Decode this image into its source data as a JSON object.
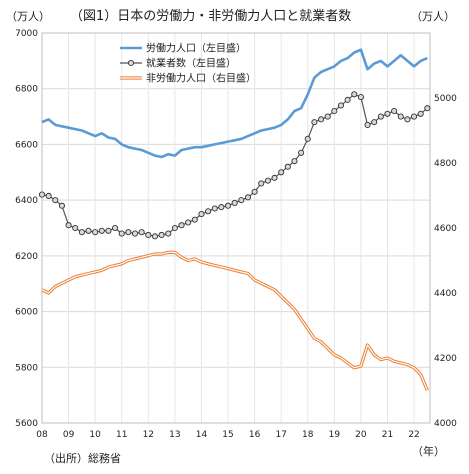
{
  "chart_data": {
    "type": "line",
    "title": "（図1）日本の労働力・非労働力人口と就業者数",
    "unit_left": "（万人）",
    "unit_right": "（万人）",
    "x_unit": "（年）",
    "source": "（出所）総務省",
    "x_ticks": [
      "08",
      "09",
      "10",
      "11",
      "12",
      "13",
      "14",
      "15",
      "16",
      "17",
      "18",
      "19",
      "20",
      "21",
      "22"
    ],
    "x_range": [
      2008.0,
      2022.6
    ],
    "y_left": {
      "min": 5600,
      "max": 7000,
      "ticks": [
        5600,
        5800,
        6000,
        6200,
        6400,
        6600,
        6800,
        7000
      ]
    },
    "y_right": {
      "min": 4000,
      "max": 5200,
      "ticks": [
        4000,
        4200,
        4400,
        4600,
        4800,
        5000
      ]
    },
    "grid": true,
    "legend_position": "top-center",
    "series": [
      {
        "name": "労働力人口（左目盛）",
        "axis": "left",
        "color": "#5b9bd5",
        "style": "line",
        "points": [
          [
            2008.0,
            6680
          ],
          [
            2008.25,
            6690
          ],
          [
            2008.5,
            6670
          ],
          [
            2008.75,
            6665
          ],
          [
            2009.0,
            6660
          ],
          [
            2009.25,
            6655
          ],
          [
            2009.5,
            6650
          ],
          [
            2009.75,
            6640
          ],
          [
            2010.0,
            6630
          ],
          [
            2010.25,
            6640
          ],
          [
            2010.5,
            6625
          ],
          [
            2010.75,
            6620
          ],
          [
            2011.0,
            6600
          ],
          [
            2011.25,
            6590
          ],
          [
            2011.5,
            6585
          ],
          [
            2011.75,
            6580
          ],
          [
            2012.0,
            6570
          ],
          [
            2012.25,
            6560
          ],
          [
            2012.5,
            6555
          ],
          [
            2012.75,
            6565
          ],
          [
            2013.0,
            6560
          ],
          [
            2013.25,
            6580
          ],
          [
            2013.5,
            6585
          ],
          [
            2013.75,
            6590
          ],
          [
            2014.0,
            6590
          ],
          [
            2014.25,
            6595
          ],
          [
            2014.5,
            6600
          ],
          [
            2014.75,
            6605
          ],
          [
            2015.0,
            6610
          ],
          [
            2015.25,
            6615
          ],
          [
            2015.5,
            6620
          ],
          [
            2015.75,
            6630
          ],
          [
            2016.0,
            6640
          ],
          [
            2016.25,
            6650
          ],
          [
            2016.5,
            6655
          ],
          [
            2016.75,
            6660
          ],
          [
            2017.0,
            6670
          ],
          [
            2017.25,
            6690
          ],
          [
            2017.5,
            6720
          ],
          [
            2017.75,
            6730
          ],
          [
            2018.0,
            6780
          ],
          [
            2018.25,
            6840
          ],
          [
            2018.5,
            6860
          ],
          [
            2018.75,
            6870
          ],
          [
            2019.0,
            6880
          ],
          [
            2019.25,
            6900
          ],
          [
            2019.5,
            6910
          ],
          [
            2019.75,
            6930
          ],
          [
            2020.0,
            6940
          ],
          [
            2020.25,
            6870
          ],
          [
            2020.5,
            6890
          ],
          [
            2020.75,
            6900
          ],
          [
            2021.0,
            6880
          ],
          [
            2021.25,
            6900
          ],
          [
            2021.5,
            6920
          ],
          [
            2021.75,
            6900
          ],
          [
            2022.0,
            6880
          ],
          [
            2022.25,
            6900
          ],
          [
            2022.5,
            6910
          ]
        ]
      },
      {
        "name": "就業者数（左目盛）",
        "axis": "left",
        "color": "#555555",
        "style": "line-markers",
        "points": [
          [
            2008.0,
            6420
          ],
          [
            2008.25,
            6415
          ],
          [
            2008.5,
            6400
          ],
          [
            2008.75,
            6380
          ],
          [
            2009.0,
            6310
          ],
          [
            2009.25,
            6300
          ],
          [
            2009.5,
            6285
          ],
          [
            2009.75,
            6290
          ],
          [
            2010.0,
            6285
          ],
          [
            2010.25,
            6290
          ],
          [
            2010.5,
            6290
          ],
          [
            2010.75,
            6300
          ],
          [
            2011.0,
            6280
          ],
          [
            2011.25,
            6285
          ],
          [
            2011.5,
            6280
          ],
          [
            2011.75,
            6285
          ],
          [
            2012.0,
            6275
          ],
          [
            2012.25,
            6270
          ],
          [
            2012.5,
            6275
          ],
          [
            2012.75,
            6280
          ],
          [
            2013.0,
            6300
          ],
          [
            2013.25,
            6310
          ],
          [
            2013.5,
            6320
          ],
          [
            2013.75,
            6330
          ],
          [
            2014.0,
            6350
          ],
          [
            2014.25,
            6360
          ],
          [
            2014.5,
            6370
          ],
          [
            2014.75,
            6375
          ],
          [
            2015.0,
            6380
          ],
          [
            2015.25,
            6390
          ],
          [
            2015.5,
            6400
          ],
          [
            2015.75,
            6410
          ],
          [
            2016.0,
            6430
          ],
          [
            2016.25,
            6460
          ],
          [
            2016.5,
            6470
          ],
          [
            2016.75,
            6480
          ],
          [
            2017.0,
            6500
          ],
          [
            2017.25,
            6520
          ],
          [
            2017.5,
            6540
          ],
          [
            2017.75,
            6570
          ],
          [
            2018.0,
            6620
          ],
          [
            2018.25,
            6680
          ],
          [
            2018.5,
            6690
          ],
          [
            2018.75,
            6700
          ],
          [
            2019.0,
            6720
          ],
          [
            2019.25,
            6740
          ],
          [
            2019.5,
            6760
          ],
          [
            2019.75,
            6780
          ],
          [
            2020.0,
            6770
          ],
          [
            2020.25,
            6670
          ],
          [
            2020.5,
            6680
          ],
          [
            2020.75,
            6700
          ],
          [
            2021.0,
            6710
          ],
          [
            2021.25,
            6720
          ],
          [
            2021.5,
            6700
          ],
          [
            2021.75,
            6690
          ],
          [
            2022.0,
            6700
          ],
          [
            2022.25,
            6710
          ],
          [
            2022.5,
            6730
          ]
        ]
      },
      {
        "name": "非労働力人口（右目盛）",
        "axis": "right",
        "color": "#ed7d31",
        "style": "double-line",
        "points": [
          [
            2008.0,
            4410
          ],
          [
            2008.25,
            4400
          ],
          [
            2008.5,
            4420
          ],
          [
            2008.75,
            4430
          ],
          [
            2009.0,
            4440
          ],
          [
            2009.25,
            4450
          ],
          [
            2009.5,
            4455
          ],
          [
            2009.75,
            4460
          ],
          [
            2010.0,
            4465
          ],
          [
            2010.25,
            4470
          ],
          [
            2010.5,
            4480
          ],
          [
            2010.75,
            4485
          ],
          [
            2011.0,
            4490
          ],
          [
            2011.25,
            4500
          ],
          [
            2011.5,
            4505
          ],
          [
            2011.75,
            4510
          ],
          [
            2012.0,
            4515
          ],
          [
            2012.25,
            4520
          ],
          [
            2012.5,
            4520
          ],
          [
            2012.75,
            4525
          ],
          [
            2013.0,
            4525
          ],
          [
            2013.25,
            4510
          ],
          [
            2013.5,
            4500
          ],
          [
            2013.75,
            4505
          ],
          [
            2014.0,
            4495
          ],
          [
            2014.25,
            4490
          ],
          [
            2014.5,
            4485
          ],
          [
            2014.75,
            4480
          ],
          [
            2015.0,
            4475
          ],
          [
            2015.25,
            4470
          ],
          [
            2015.5,
            4465
          ],
          [
            2015.75,
            4460
          ],
          [
            2016.0,
            4440
          ],
          [
            2016.25,
            4430
          ],
          [
            2016.5,
            4420
          ],
          [
            2016.75,
            4410
          ],
          [
            2017.0,
            4390
          ],
          [
            2017.25,
            4370
          ],
          [
            2017.5,
            4350
          ],
          [
            2017.75,
            4320
          ],
          [
            2018.0,
            4290
          ],
          [
            2018.25,
            4260
          ],
          [
            2018.5,
            4250
          ],
          [
            2018.75,
            4230
          ],
          [
            2019.0,
            4210
          ],
          [
            2019.25,
            4200
          ],
          [
            2019.5,
            4185
          ],
          [
            2019.75,
            4170
          ],
          [
            2020.0,
            4175
          ],
          [
            2020.25,
            4240
          ],
          [
            2020.5,
            4210
          ],
          [
            2020.75,
            4195
          ],
          [
            2021.0,
            4200
          ],
          [
            2021.25,
            4190
          ],
          [
            2021.5,
            4185
          ],
          [
            2021.75,
            4180
          ],
          [
            2022.0,
            4170
          ],
          [
            2022.25,
            4150
          ],
          [
            2022.5,
            4100
          ]
        ]
      }
    ]
  }
}
